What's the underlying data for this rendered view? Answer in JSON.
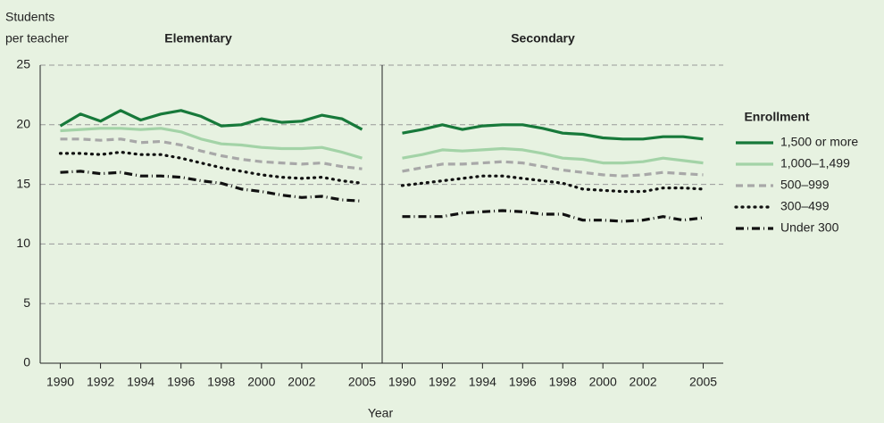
{
  "chart_data": {
    "type": "line",
    "y_label": [
      "Students",
      "per teacher"
    ],
    "x_label": "Year",
    "legend_title": "Enrollment",
    "legend_position": "right",
    "grid": true,
    "ylim": [
      0,
      25
    ],
    "yticks": [
      0,
      5,
      10,
      15,
      20,
      25
    ],
    "xlim": [
      1989,
      2006
    ],
    "xticks": [
      1990,
      1992,
      1994,
      1996,
      1998,
      2000,
      2002,
      2005
    ],
    "x": [
      1990,
      1991,
      1992,
      1993,
      1994,
      1995,
      1996,
      1997,
      1998,
      1999,
      2000,
      2001,
      2002,
      2003,
      2004,
      2005
    ],
    "legend": [
      {
        "name": "1,500 or more",
        "color": "#17793a",
        "style": "solid"
      },
      {
        "name": "1,000–1,499",
        "color": "#a3d3a7",
        "style": "solid"
      },
      {
        "name": "500–999",
        "color": "#a8a8a8",
        "style": "dashed"
      },
      {
        "name": "300–499",
        "color": "#111111",
        "style": "dotted"
      },
      {
        "name": "Under 300",
        "color": "#111111",
        "style": "dashdot"
      }
    ],
    "panels": [
      {
        "title": "Elementary",
        "series": [
          {
            "values": [
              19.9,
              20.9,
              20.3,
              21.2,
              20.4,
              20.9,
              21.2,
              20.7,
              19.9,
              20.0,
              20.5,
              20.2,
              20.3,
              20.8,
              20.5,
              19.6
            ]
          },
          {
            "values": [
              19.5,
              19.6,
              19.7,
              19.7,
              19.6,
              19.7,
              19.4,
              18.8,
              18.4,
              18.3,
              18.1,
              18.0,
              18.0,
              18.1,
              17.7,
              17.2
            ]
          },
          {
            "values": [
              18.8,
              18.8,
              18.7,
              18.8,
              18.5,
              18.6,
              18.3,
              17.8,
              17.4,
              17.1,
              16.9,
              16.8,
              16.7,
              16.8,
              16.5,
              16.3
            ]
          },
          {
            "values": [
              17.6,
              17.6,
              17.5,
              17.7,
              17.5,
              17.5,
              17.2,
              16.8,
              16.4,
              16.1,
              15.8,
              15.6,
              15.5,
              15.6,
              15.3,
              15.1
            ]
          },
          {
            "values": [
              16.0,
              16.1,
              15.9,
              16.0,
              15.7,
              15.7,
              15.6,
              15.3,
              15.1,
              14.6,
              14.4,
              14.1,
              13.9,
              14.0,
              13.7,
              13.6
            ]
          }
        ]
      },
      {
        "title": "Secondary",
        "series": [
          {
            "values": [
              19.3,
              19.6,
              20.0,
              19.6,
              19.9,
              20.0,
              20.0,
              19.7,
              19.3,
              19.2,
              18.9,
              18.8,
              18.8,
              19.0,
              19.0,
              18.8
            ]
          },
          {
            "values": [
              17.2,
              17.5,
              17.9,
              17.8,
              17.9,
              18.0,
              17.9,
              17.6,
              17.2,
              17.1,
              16.8,
              16.8,
              16.9,
              17.2,
              17.0,
              16.8
            ]
          },
          {
            "values": [
              16.1,
              16.4,
              16.7,
              16.7,
              16.8,
              16.9,
              16.8,
              16.5,
              16.2,
              16.0,
              15.8,
              15.7,
              15.8,
              16.0,
              15.9,
              15.8
            ]
          },
          {
            "values": [
              14.9,
              15.1,
              15.3,
              15.5,
              15.7,
              15.7,
              15.5,
              15.3,
              15.1,
              14.6,
              14.5,
              14.4,
              14.4,
              14.7,
              14.7,
              14.6
            ]
          },
          {
            "values": [
              12.3,
              12.3,
              12.3,
              12.6,
              12.7,
              12.8,
              12.7,
              12.5,
              12.5,
              12.0,
              12.0,
              11.9,
              12.0,
              12.3,
              12.0,
              12.2
            ]
          }
        ]
      }
    ]
  }
}
